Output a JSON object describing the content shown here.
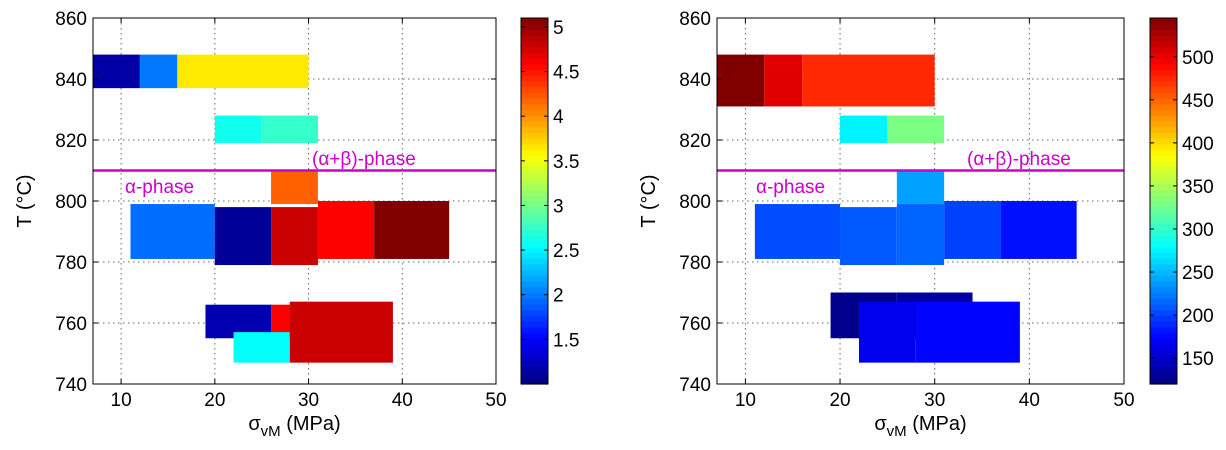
{
  "chart_data": [
    {
      "type": "heatmap",
      "xlabel": {
        "symbol": "σ",
        "sub": "vM",
        "unit": " (MPa)"
      },
      "ylabel": "T (°C)",
      "xlim": [
        7,
        50
      ],
      "ylim": [
        740,
        860
      ],
      "xticks": [
        "10",
        "20",
        "30",
        "40",
        "50"
      ],
      "yticks": [
        "740",
        "760",
        "780",
        "800",
        "820",
        "840",
        "860"
      ],
      "grid": true,
      "colorbar": {
        "min": 1.0,
        "max": 5.1,
        "ticks": [
          "1.5",
          "2",
          "2.5",
          "3",
          "3.5",
          "4",
          "4.5",
          "5"
        ]
      },
      "phase_line": {
        "y": 810,
        "color": "#cc00cc",
        "label_above": "(α+β)-phase",
        "label_below": "α-phase"
      },
      "cells": [
        {
          "x": [
            7,
            12
          ],
          "y": [
            837,
            848
          ],
          "value": 1.15
        },
        {
          "x": [
            12,
            16
          ],
          "y": [
            837,
            848
          ],
          "value": 2.0
        },
        {
          "x": [
            16,
            30
          ],
          "y": [
            837,
            848
          ],
          "value": 3.65
        },
        {
          "x": [
            20,
            25
          ],
          "y": [
            819,
            828
          ],
          "value": 2.6
        },
        {
          "x": [
            25,
            31
          ],
          "y": [
            819,
            828
          ],
          "value": 2.75
        },
        {
          "x": [
            26,
            31
          ],
          "y": [
            799,
            810
          ],
          "value": 4.2
        },
        {
          "x": [
            11,
            20
          ],
          "y": [
            781,
            799
          ],
          "value": 1.95
        },
        {
          "x": [
            20,
            26
          ],
          "y": [
            779,
            798
          ],
          "value": 1.1
        },
        {
          "x": [
            26,
            31
          ],
          "y": [
            779,
            798
          ],
          "value": 4.8
        },
        {
          "x": [
            31,
            37
          ],
          "y": [
            781,
            800
          ],
          "value": 4.6
        },
        {
          "x": [
            37,
            45
          ],
          "y": [
            781,
            800
          ],
          "value": 5.1
        },
        {
          "x": [
            19,
            26
          ],
          "y": [
            755,
            766
          ],
          "value": 1.2
        },
        {
          "x": [
            26,
            34
          ],
          "y": [
            755,
            766
          ],
          "value": 4.6
        },
        {
          "x": [
            22,
            28
          ],
          "y": [
            747,
            757
          ],
          "value": 2.55
        },
        {
          "x": [
            28,
            39
          ],
          "y": [
            747,
            767
          ],
          "value": 4.8
        }
      ]
    },
    {
      "type": "heatmap",
      "xlabel": {
        "symbol": "σ",
        "sub": "vM",
        "unit": " (MPa)"
      },
      "ylabel": "T (°C)",
      "xlim": [
        7,
        50
      ],
      "ylim": [
        740,
        860
      ],
      "xticks": [
        "10",
        "20",
        "30",
        "40",
        "50"
      ],
      "yticks": [
        "740",
        "760",
        "780",
        "800",
        "820",
        "840",
        "860"
      ],
      "grid": true,
      "colorbar": {
        "min": 120,
        "max": 545,
        "ticks": [
          "150",
          "200",
          "250",
          "300",
          "350",
          "400",
          "450",
          "500"
        ]
      },
      "phase_line": {
        "y": 810,
        "color": "#cc00cc",
        "label_above": "(α+β)-phase",
        "label_below": "α-phase"
      },
      "cells": [
        {
          "x": [
            7,
            12
          ],
          "y": [
            831,
            848
          ],
          "value": 545
        },
        {
          "x": [
            12,
            16
          ],
          "y": [
            831,
            848
          ],
          "value": 505
        },
        {
          "x": [
            16,
            30
          ],
          "y": [
            831,
            848
          ],
          "value": 475
        },
        {
          "x": [
            20,
            25
          ],
          "y": [
            819,
            828
          ],
          "value": 275
        },
        {
          "x": [
            25,
            31
          ],
          "y": [
            819,
            828
          ],
          "value": 330
        },
        {
          "x": [
            26,
            31
          ],
          "y": [
            799,
            810
          ],
          "value": 240
        },
        {
          "x": [
            11,
            20
          ],
          "y": [
            781,
            799
          ],
          "value": 205
        },
        {
          "x": [
            20,
            26
          ],
          "y": [
            779,
            798
          ],
          "value": 210
        },
        {
          "x": [
            26,
            31
          ],
          "y": [
            779,
            799
          ],
          "value": 215
        },
        {
          "x": [
            31,
            37
          ],
          "y": [
            781,
            800
          ],
          "value": 200
        },
        {
          "x": [
            37,
            45
          ],
          "y": [
            781,
            800
          ],
          "value": 180
        },
        {
          "x": [
            19,
            26
          ],
          "y": [
            755,
            770
          ],
          "value": 125
        },
        {
          "x": [
            26,
            34
          ],
          "y": [
            755,
            770
          ],
          "value": 135
        },
        {
          "x": [
            22,
            28
          ],
          "y": [
            747,
            767
          ],
          "value": 165
        },
        {
          "x": [
            28,
            39
          ],
          "y": [
            747,
            767
          ],
          "value": 175
        }
      ]
    }
  ]
}
